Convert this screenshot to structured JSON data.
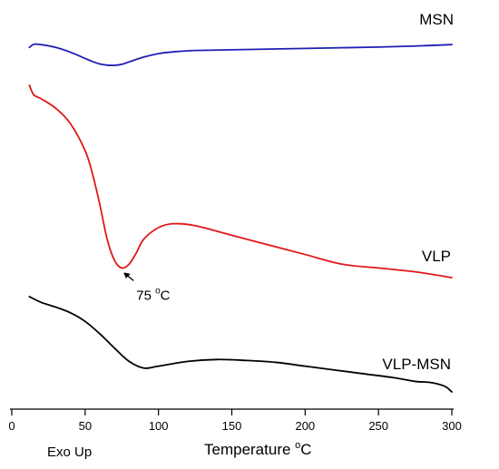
{
  "chart_data": {
    "type": "line",
    "title": "",
    "xlabel_prefix": "Temperature ",
    "xlabel_degree": "o",
    "xlabel_unit": "C",
    "ylabel": "",
    "corner_note": "Exo Up",
    "xlim": [
      0,
      300
    ],
    "xticks": [
      0,
      50,
      100,
      150,
      200,
      250,
      300
    ],
    "grid": false,
    "legend": "labels placed beside each curve",
    "series": [
      {
        "name": "MSN",
        "color": "#1f1fb4",
        "x": [
          12,
          15,
          20,
          30,
          40,
          50,
          55,
          60,
          65,
          70,
          75,
          80,
          90,
          100,
          110,
          125,
          150,
          175,
          200,
          225,
          250,
          275,
          300
        ],
        "y": [
          0.52,
          0.61,
          0.6,
          0.52,
          0.38,
          0.2,
          0.11,
          0.04,
          0.005,
          0.0,
          0.03,
          0.1,
          0.24,
          0.34,
          0.39,
          0.43,
          0.45,
          0.47,
          0.49,
          0.51,
          0.53,
          0.56,
          0.6
        ]
      },
      {
        "name": "VLP",
        "color": "#e01818",
        "x": [
          12,
          15,
          20,
          30,
          40,
          50,
          55,
          60,
          65,
          70,
          75,
          80,
          85,
          90,
          100,
          110,
          125,
          150,
          175,
          200,
          225,
          250,
          275,
          300
        ],
        "y": [
          1.0,
          0.95,
          0.93,
          0.88,
          0.8,
          0.66,
          0.54,
          0.38,
          0.2,
          0.09,
          0.05,
          0.07,
          0.13,
          0.2,
          0.26,
          0.28,
          0.27,
          0.22,
          0.17,
          0.12,
          0.07,
          0.05,
          0.03,
          0.0
        ]
      },
      {
        "name": "VLP-MSN",
        "color": "#000000",
        "x": [
          12,
          20,
          30,
          40,
          50,
          60,
          70,
          80,
          90,
          100,
          120,
          140,
          160,
          180,
          200,
          220,
          240,
          260,
          275,
          285,
          295,
          300
        ],
        "y": [
          1.0,
          0.94,
          0.89,
          0.83,
          0.74,
          0.61,
          0.46,
          0.32,
          0.25,
          0.27,
          0.32,
          0.34,
          0.33,
          0.31,
          0.27,
          0.23,
          0.19,
          0.15,
          0.11,
          0.1,
          0.06,
          0.0
        ]
      }
    ],
    "annotations": [
      {
        "text": "75 ",
        "degree": "o",
        "unit": "C",
        "series": "VLP",
        "x": 75,
        "arrow": true
      }
    ]
  }
}
